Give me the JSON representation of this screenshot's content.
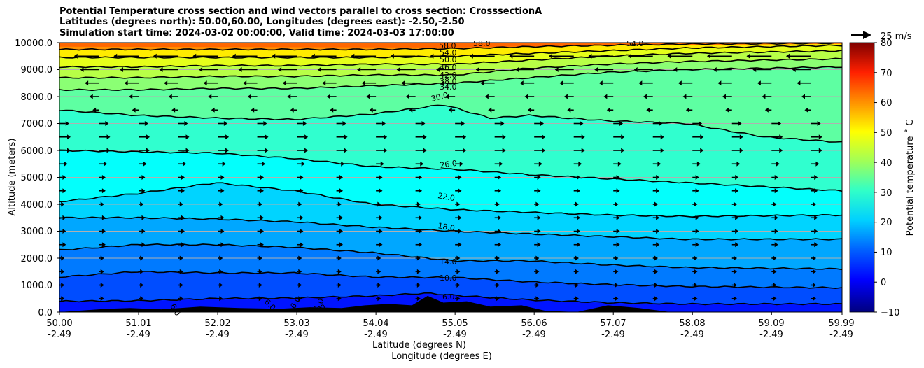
{
  "chart_data": {
    "type": "heatmap",
    "title_lines": [
      "Potential Temperature cross section and wind vectors parallel to cross section: CrosssectionA",
      "Latitudes (degrees north): 50.00,60.00, Longitudes (degrees east): -2.50,-2.50",
      "Simulation start time: 2024-03-02 00:00:00, Valid time: 2024-03-03 17:00:00"
    ],
    "xlabel_lines": [
      "Latitude (degrees N)",
      "Longitude (degrees E)"
    ],
    "ylabel": "Altitude (meters)",
    "colorbar_label": "Potential temperature ˚ C",
    "vector_key_label": "25 m/s",
    "x_ticks": [
      {
        "lat": "50.00",
        "lon": "-2.49"
      },
      {
        "lat": "51.01",
        "lon": "-2.49"
      },
      {
        "lat": "52.02",
        "lon": "-2.49"
      },
      {
        "lat": "53.03",
        "lon": "-2.49"
      },
      {
        "lat": "54.04",
        "lon": "-2.49"
      },
      {
        "lat": "55.05",
        "lon": "-2.49"
      },
      {
        "lat": "56.06",
        "lon": "-2.49"
      },
      {
        "lat": "57.07",
        "lon": "-2.49"
      },
      {
        "lat": "58.08",
        "lon": "-2.49"
      },
      {
        "lat": "59.09",
        "lon": "-2.49"
      },
      {
        "lat": "59.99",
        "lon": "-2.49"
      }
    ],
    "y_ticks": [
      "0.0",
      "1000.0",
      "2000.0",
      "3000.0",
      "4000.0",
      "5000.0",
      "6000.0",
      "7000.0",
      "8000.0",
      "9000.0",
      "10000.0"
    ],
    "xlim": [
      50.0,
      59.99
    ],
    "ylim": [
      0,
      10000
    ],
    "grid": "horizontal",
    "colorbar_ticks": [
      "−10",
      "0",
      "10",
      "20",
      "30",
      "40",
      "50",
      "60",
      "70",
      "80"
    ],
    "colorbar_range": [
      -10,
      80
    ],
    "colormap": "jet",
    "contour_labels": [
      "58.0",
      "54.0",
      "50.0",
      "46.0",
      "42.0",
      "38.0",
      "34.0",
      "30.0",
      "26.0",
      "22.0",
      "18.0",
      "14.0",
      "10.0",
      "6.0",
      "6.0",
      "6.0",
      "6.0",
      "6.0",
      "6.0"
    ],
    "series": [
      {
        "level": 6,
        "lat": [
          50.0,
          51.0,
          52.0,
          53.0,
          54.0,
          54.7,
          55.05,
          56.0,
          57.0,
          58.0,
          59.99
        ],
        "alt": [
          400,
          420,
          500,
          520,
          600,
          700,
          620,
          450,
          350,
          300,
          300
        ]
      },
      {
        "level": 10,
        "lat": [
          50.0,
          51.0,
          52.0,
          53.0,
          54.0,
          55.05,
          56.0,
          57.0,
          58.0,
          59.99
        ],
        "alt": [
          1300,
          1500,
          1450,
          1450,
          1300,
          1280,
          1120,
          1020,
          950,
          900
        ]
      },
      {
        "level": 14,
        "lat": [
          50.0,
          51.0,
          52.0,
          53.0,
          54.0,
          55.05,
          56.0,
          57.0,
          58.0,
          59.99
        ],
        "alt": [
          2300,
          2500,
          2500,
          2400,
          2200,
          1900,
          1900,
          1750,
          1650,
          1600
        ]
      },
      {
        "level": 18,
        "lat": [
          50.0,
          51.0,
          52.0,
          53.0,
          54.0,
          55.05,
          56.0,
          57.0,
          58.0,
          59.99
        ],
        "alt": [
          3500,
          3500,
          3450,
          3350,
          3150,
          3000,
          2900,
          2800,
          2700,
          2700
        ]
      },
      {
        "level": 22,
        "lat": [
          50.0,
          51.0,
          52.0,
          53.0,
          54.0,
          55.05,
          56.0,
          57.0,
          58.0,
          59.99
        ],
        "alt": [
          4100,
          4400,
          4800,
          4500,
          4000,
          3800,
          3700,
          3600,
          3550,
          3600
        ]
      },
      {
        "level": 26,
        "lat": [
          50.0,
          51.0,
          52.0,
          53.0,
          54.0,
          55.05,
          56.0,
          57.0,
          58.0,
          59.99
        ],
        "alt": [
          6000,
          5950,
          5900,
          5700,
          5400,
          5300,
          5100,
          4950,
          4800,
          4500
        ]
      },
      {
        "level": 30,
        "lat": [
          50.0,
          51.0,
          52.0,
          53.0,
          54.0,
          54.9,
          55.5,
          56.0,
          57.0,
          58.0,
          59.0,
          59.99
        ],
        "alt": [
          7500,
          7300,
          7200,
          7150,
          7350,
          7700,
          7200,
          7300,
          7100,
          7000,
          6500,
          6300
        ]
      },
      {
        "level": 34,
        "lat": [
          50.0,
          51.0,
          52.0,
          53.0,
          54.0,
          55.05,
          56.0,
          57.0,
          58.0,
          59.99
        ],
        "alt": [
          8250,
          8250,
          8300,
          8300,
          8400,
          8500,
          8700,
          8900,
          9000,
          9100
        ]
      },
      {
        "level": 38,
        "lat": [
          50.0,
          51.0,
          52.0,
          53.0,
          54.0,
          55.05,
          56.0,
          57.0,
          58.0,
          59.99
        ],
        "alt": [
          8700,
          8700,
          8750,
          8750,
          8800,
          8800,
          9050,
          9200,
          9300,
          9400
        ]
      },
      {
        "level": 42,
        "lat": [
          50.0,
          51.0,
          52.0,
          53.0,
          54.0,
          55.05,
          56.0,
          57.0,
          58.0,
          59.99
        ],
        "alt": [
          9100,
          9100,
          9150,
          9150,
          9200,
          9200,
          9350,
          9500,
          9600,
          9700
        ]
      },
      {
        "level": 46,
        "lat": [
          50.0,
          51.0,
          52.0,
          53.0,
          54.0,
          55.05,
          56.0,
          57.0,
          58.0,
          59.99
        ],
        "alt": [
          9450,
          9450,
          9450,
          9450,
          9450,
          9500,
          9600,
          9700,
          9800,
          9900
        ]
      },
      {
        "level": 50,
        "lat": [
          50.0,
          51.0,
          52.0,
          53.0,
          54.0,
          55.05,
          56.0,
          57.0,
          58.0,
          59.99
        ],
        "alt": [
          9750,
          9750,
          9750,
          9750,
          9750,
          9780,
          9850,
          9900,
          9950,
          9980
        ]
      }
    ],
    "wind_rows": [
      {
        "alt": 9500,
        "u": -14
      },
      {
        "alt": 9000,
        "u": -10
      },
      {
        "alt": 8500,
        "u": -7
      },
      {
        "alt": 8000,
        "u": -4
      },
      {
        "alt": 7500,
        "u": -2
      },
      {
        "alt": 7000,
        "u": 4
      },
      {
        "alt": 6500,
        "u": 5
      },
      {
        "alt": 6000,
        "u": 5
      },
      {
        "alt": 5500,
        "u": 3
      },
      {
        "alt": 5000,
        "u": 2
      },
      {
        "alt": 4500,
        "u": 2
      },
      {
        "alt": 4000,
        "u": 1
      },
      {
        "alt": 3500,
        "u": 2
      },
      {
        "alt": 3000,
        "u": 2
      },
      {
        "alt": 2500,
        "u": 2
      },
      {
        "alt": 2000,
        "u": 1
      },
      {
        "alt": 1500,
        "u": 1
      },
      {
        "alt": 1000,
        "u": 1
      },
      {
        "alt": 500,
        "u": 1
      }
    ],
    "terrain": {
      "lat": [
        50.0,
        50.6,
        50.9,
        51.3,
        51.8,
        52.3,
        52.8,
        53.2,
        53.6,
        53.9,
        54.2,
        54.5,
        54.7,
        54.9,
        55.2,
        55.5,
        55.9,
        56.2,
        56.6,
        57.0,
        57.4,
        57.8,
        58.2,
        59.99
      ],
      "alt": [
        0,
        120,
        150,
        100,
        200,
        150,
        120,
        180,
        150,
        250,
        300,
        250,
        600,
        350,
        400,
        200,
        250,
        50,
        0,
        250,
        150,
        0,
        0,
        0
      ]
    }
  }
}
